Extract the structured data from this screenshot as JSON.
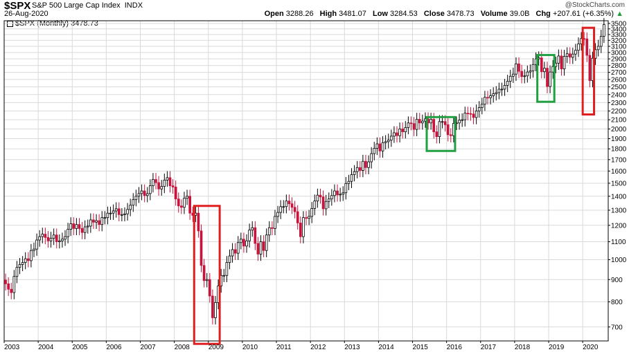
{
  "header": {
    "symbol": "$SPX",
    "name": "S&P 500 Large Cap Index",
    "exchange": "INDX",
    "date": "26-Aug-2020",
    "watermark": "@StockCharts.com",
    "quote": {
      "open_label": "Open",
      "open": "3288.26",
      "high_label": "High",
      "high": "3481.07",
      "low_label": "Low",
      "low": "3284.53",
      "close_label": "Close",
      "close": "3478.73",
      "volume_label": "Volume",
      "volume": "39.0B",
      "chg_label": "Chg",
      "chg": "+207.61 (+6.35%)"
    },
    "legend": "$SPX (Monthly) 3478.73"
  },
  "colors": {
    "up": "#000000",
    "down": "#c8143c",
    "red_box": "#e02020",
    "green_box": "#20a040",
    "grid": "#d9d9d9"
  },
  "chart_data": {
    "type": "candlestick",
    "title": "$SPX",
    "y_scale": "log",
    "ylim": [
      650,
      3550
    ],
    "y_ticks": [
      700,
      800,
      900,
      1000,
      1100,
      1200,
      1300,
      1400,
      1500,
      1600,
      1700,
      1800,
      1900,
      2000,
      2100,
      2200,
      2300,
      2400,
      2500,
      2600,
      2700,
      2800,
      2900,
      3000,
      3100,
      3200,
      3300,
      3400,
      3500
    ],
    "x_ticks": [
      "2003",
      "2004",
      "2005",
      "2006",
      "2007",
      "2008",
      "2009",
      "2010",
      "2011",
      "2012",
      "2013",
      "2014",
      "2015",
      "2016",
      "2017",
      "2018",
      "2019",
      "2020"
    ],
    "x_range": [
      2003.0,
      2020.75
    ],
    "monthly_close": [
      880,
      855,
      840,
      915,
      960,
      975,
      985,
      1005,
      995,
      1050,
      1058,
      1110,
      1130,
      1145,
      1125,
      1105,
      1120,
      1140,
      1100,
      1105,
      1115,
      1130,
      1175,
      1210,
      1180,
      1205,
      1180,
      1155,
      1190,
      1195,
      1235,
      1220,
      1230,
      1205,
      1250,
      1250,
      1280,
      1280,
      1295,
      1310,
      1270,
      1270,
      1275,
      1305,
      1335,
      1375,
      1400,
      1420,
      1440,
      1405,
      1420,
      1480,
      1530,
      1505,
      1455,
      1475,
      1525,
      1545,
      1480,
      1470,
      1380,
      1330,
      1320,
      1385,
      1400,
      1280,
      1265,
      1280,
      1165,
      970,
      895,
      900,
      825,
      735,
      797,
      870,
      920,
      920,
      985,
      1020,
      1055,
      1035,
      1095,
      1115,
      1075,
      1105,
      1170,
      1185,
      1090,
      1030,
      1100,
      1050,
      1140,
      1185,
      1180,
      1258,
      1285,
      1325,
      1325,
      1365,
      1345,
      1320,
      1290,
      1215,
      1130,
      1250,
      1245,
      1258,
      1312,
      1365,
      1408,
      1395,
      1310,
      1362,
      1380,
      1405,
      1440,
      1410,
      1415,
      1426,
      1498,
      1515,
      1570,
      1595,
      1630,
      1605,
      1685,
      1630,
      1680,
      1755,
      1805,
      1848,
      1780,
      1860,
      1870,
      1885,
      1925,
      1960,
      1930,
      2000,
      1970,
      2015,
      2065,
      2058,
      1995,
      2105,
      2065,
      2085,
      2110,
      2065,
      2105,
      1970,
      1920,
      2080,
      2080,
      2045,
      1940,
      1930,
      2060,
      2065,
      2095,
      2100,
      2175,
      2170,
      2165,
      2125,
      2200,
      2240,
      2280,
      2365,
      2360,
      2385,
      2410,
      2425,
      2470,
      2470,
      2520,
      2575,
      2645,
      2675,
      2825,
      2715,
      2640,
      2650,
      2705,
      2720,
      2815,
      2900,
      2915,
      2710,
      2760,
      2505,
      2705,
      2785,
      2835,
      2945,
      2750,
      2940,
      2980,
      2925,
      2975,
      3035,
      3140,
      3230,
      3225,
      2955,
      2585,
      2910,
      3045,
      3100,
      3270,
      3479
    ],
    "annotations": [
      {
        "shape": "rectangle",
        "color": "red",
        "period": [
          "2008-08",
          "2009-04"
        ],
        "range": [
          640,
          1330
        ]
      },
      {
        "shape": "rectangle",
        "color": "green",
        "period": [
          "2015-06",
          "2016-03"
        ],
        "range": [
          1780,
          2130
        ]
      },
      {
        "shape": "rectangle",
        "color": "green",
        "period": [
          "2018-09",
          "2019-02"
        ],
        "range": [
          2310,
          2960
        ]
      },
      {
        "shape": "rectangle",
        "color": "red",
        "period": [
          "2020-01",
          "2020-04"
        ],
        "range": [
          2160,
          3420
        ]
      }
    ]
  }
}
